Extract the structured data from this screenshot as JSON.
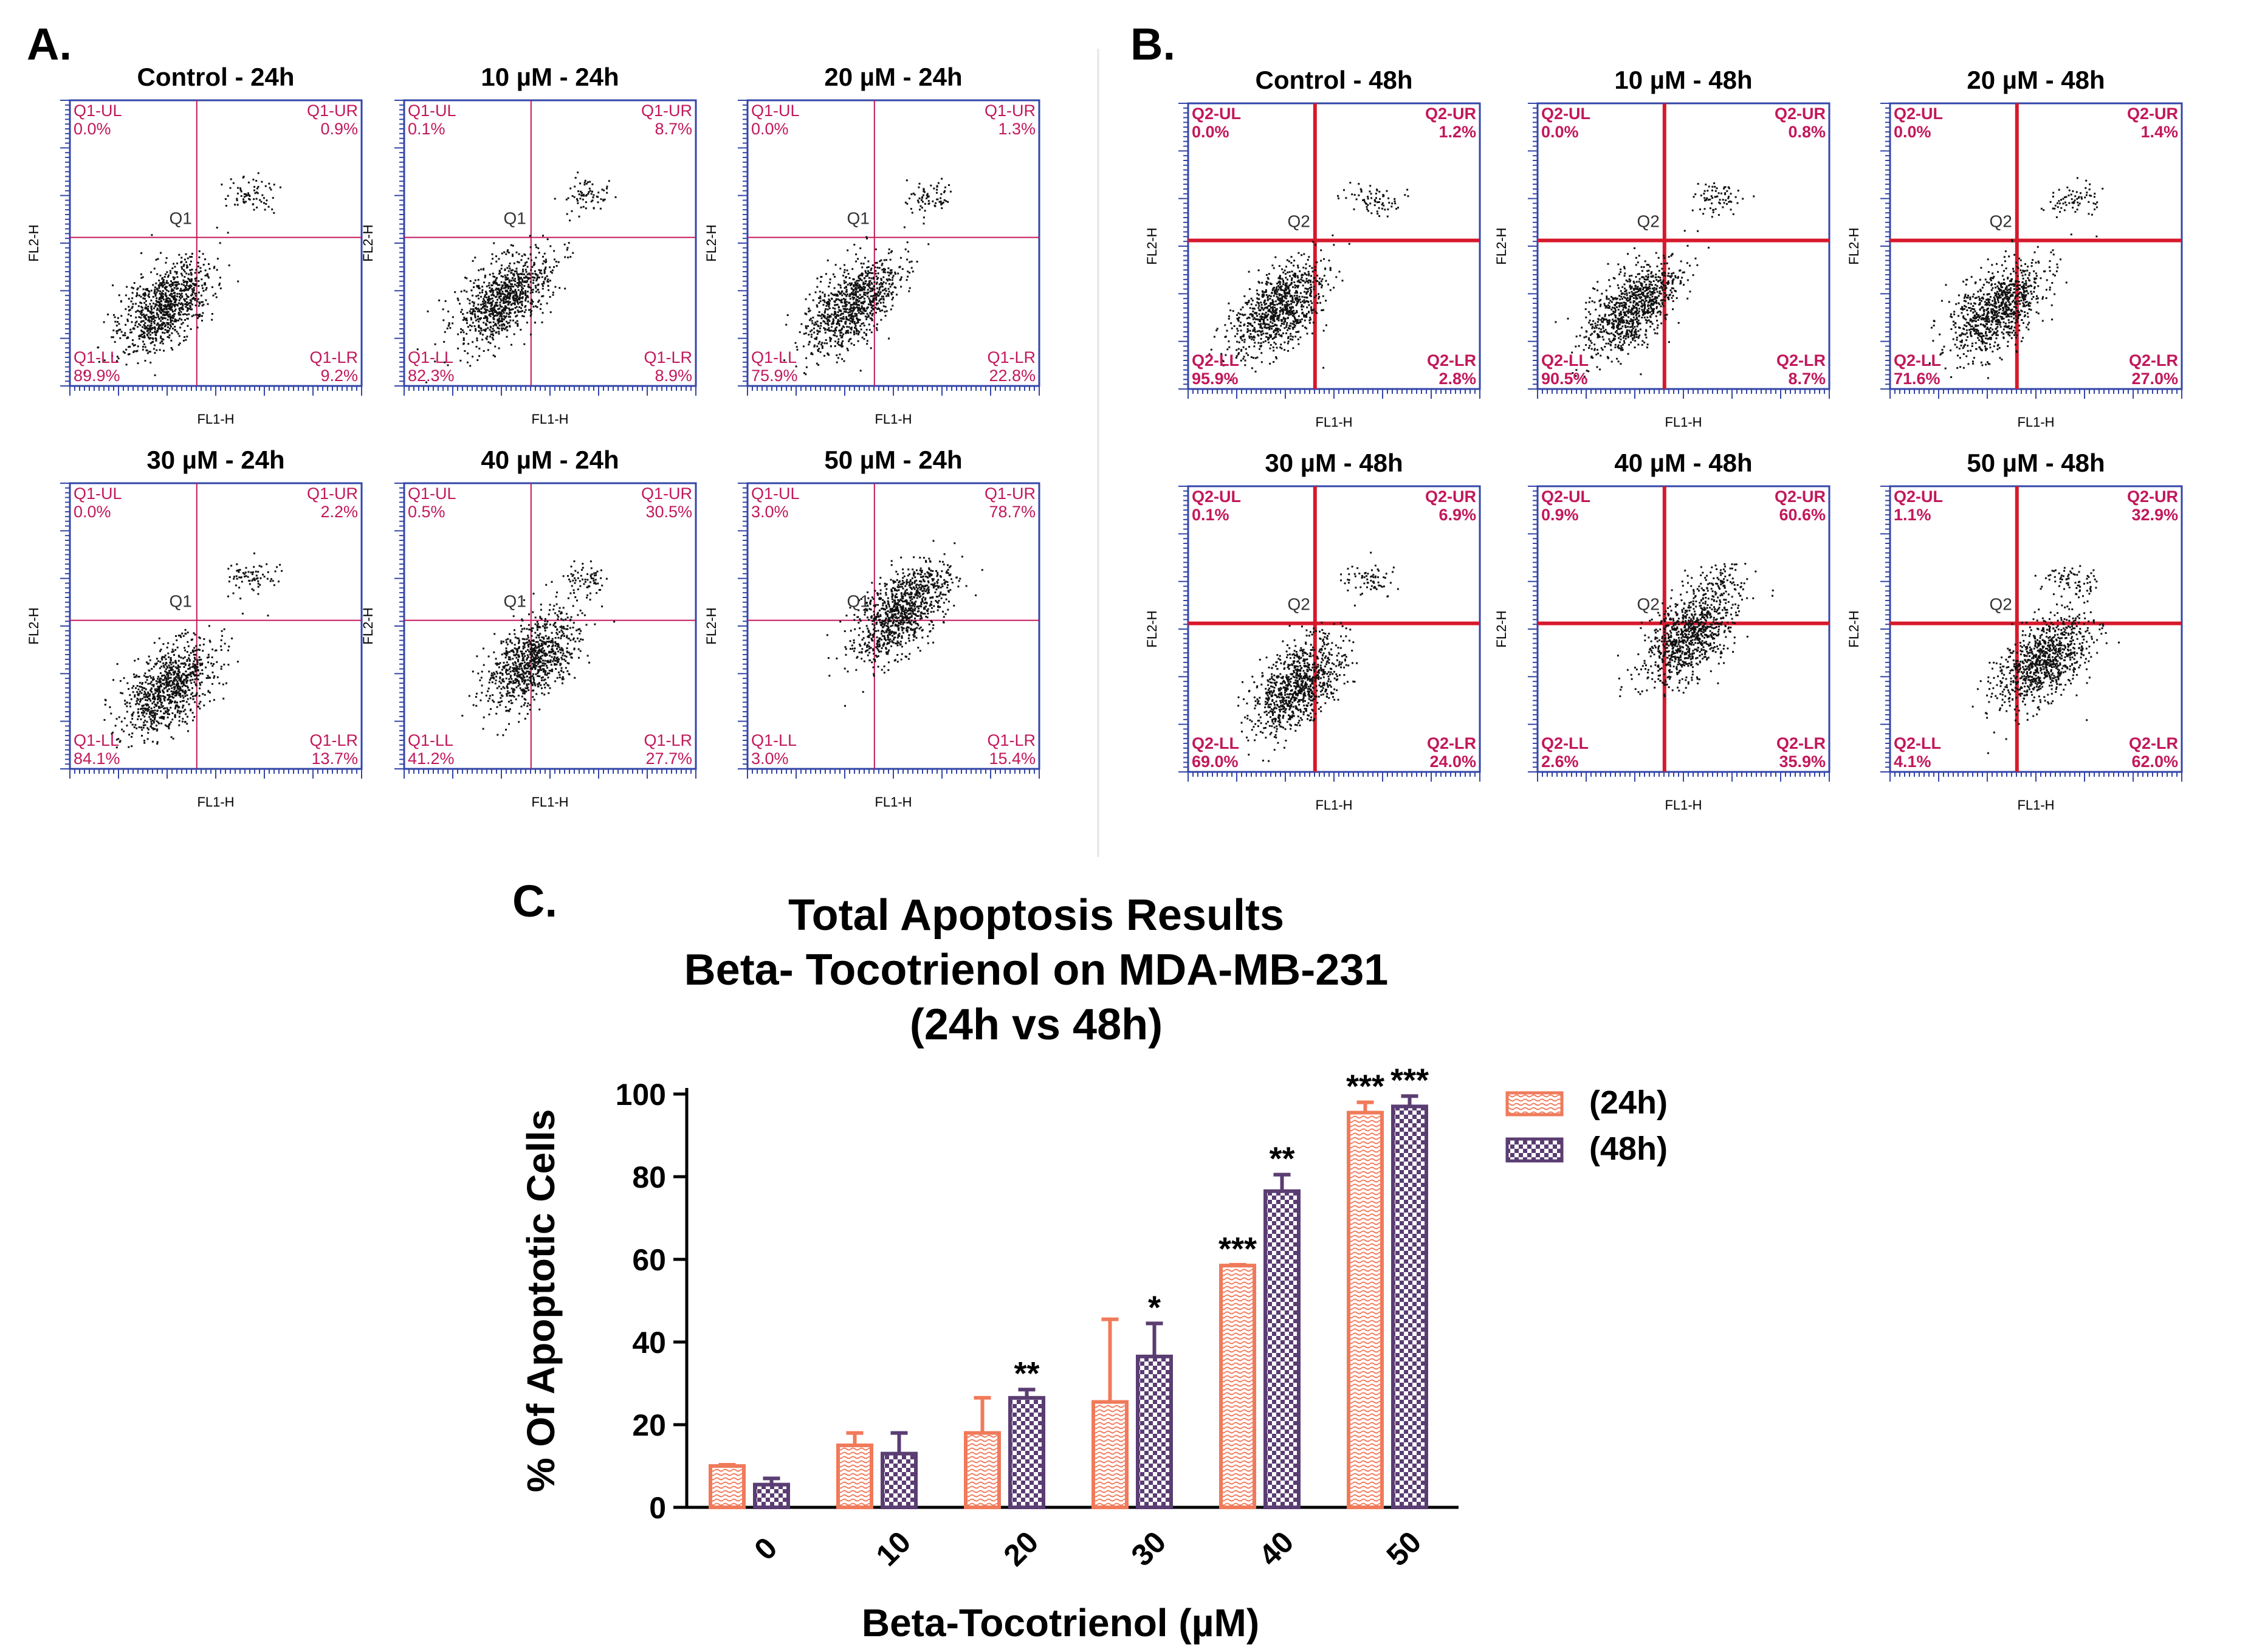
{
  "panel_labels": {
    "a": "A.",
    "b": "B.",
    "c": "C."
  },
  "panel_a": {
    "plots": [
      {
        "title": "Control - 24h",
        "prefix": "Q1",
        "UL": "0.0%",
        "UR": "0.9%",
        "LL": "89.9%",
        "LR": "9.2%"
      },
      {
        "title": "10 µM - 24h",
        "prefix": "Q1",
        "UL": "0.1%",
        "UR": "8.7%",
        "LL": "82.3%",
        "LR": "8.9%"
      },
      {
        "title": "20 µM - 24h",
        "prefix": "Q1",
        "UL": "0.0%",
        "UR": "1.3%",
        "LL": "75.9%",
        "LR": "22.8%"
      },
      {
        "title": "30 µM - 24h",
        "prefix": "Q1",
        "UL": "0.0%",
        "UR": "2.2%",
        "LL": "84.1%",
        "LR": "13.7%"
      },
      {
        "title": "40 µM - 24h",
        "prefix": "Q1",
        "UL": "0.5%",
        "UR": "30.5%",
        "LL": "41.2%",
        "LR": "27.7%"
      },
      {
        "title": "50 µM - 24h",
        "prefix": "Q1",
        "UL": "3.0%",
        "UR": "78.7%",
        "LL": "3.0%",
        "LR": "15.4%"
      }
    ]
  },
  "panel_b": {
    "plots": [
      {
        "title": "Control - 48h",
        "prefix": "Q2",
        "UL": "0.0%",
        "UR": "1.2%",
        "LL": "95.9%",
        "LR": "2.8%"
      },
      {
        "title": "10 µM - 48h",
        "prefix": "Q2",
        "UL": "0.0%",
        "UR": "0.8%",
        "LL": "90.5%",
        "LR": "8.7%"
      },
      {
        "title": "20 µM - 48h",
        "prefix": "Q2",
        "UL": "0.0%",
        "UR": "1.4%",
        "LL": "71.6%",
        "LR": "27.0%"
      },
      {
        "title": "30 µM - 48h",
        "prefix": "Q2",
        "UL": "0.1%",
        "UR": "6.9%",
        "LL": "69.0%",
        "LR": "24.0%"
      },
      {
        "title": "40 µM - 48h",
        "prefix": "Q2",
        "UL": "0.9%",
        "UR": "60.6%",
        "LL": "2.6%",
        "LR": "35.9%"
      },
      {
        "title": "50 µM - 48h",
        "prefix": "Q2",
        "UL": "1.1%",
        "UR": "32.9%",
        "LL": "4.1%",
        "LR": "62.0%"
      }
    ]
  },
  "flow_axes": {
    "xlabel": "FL1-H",
    "ylabel": "FL2-H"
  },
  "chart_data": {
    "type": "bar",
    "title": "Total Apoptosis Results",
    "subtitle": "Beta- Tocotrienol on MDA-MB-231",
    "subtitle2": "(24h vs 48h)",
    "xlabel": "Beta-Tocotrienol (µM)",
    "ylabel": "% Of Apoptotic Cells",
    "categories": [
      "0",
      "10",
      "20",
      "30",
      "40",
      "50"
    ],
    "ylim": [
      0,
      100
    ],
    "yticks": [
      0,
      20,
      40,
      60,
      80,
      100
    ],
    "series": [
      {
        "name": "(24h)",
        "color": "#f07a5a",
        "values": [
          10,
          15,
          18,
          25.5,
          58.5,
          95.5
        ],
        "errors": [
          0.3,
          3,
          8.5,
          20,
          0.2,
          2.5
        ],
        "significance": [
          "",
          "",
          "",
          "",
          "***",
          "***"
        ]
      },
      {
        "name": "(48h)",
        "color": "#5a3d72",
        "values": [
          5.5,
          13,
          26.5,
          36.5,
          76.5,
          97
        ],
        "errors": [
          1.5,
          5,
          2,
          8,
          4,
          2.5
        ],
        "significance": [
          "",
          "",
          "**",
          "*",
          "**",
          "***"
        ]
      }
    ],
    "legend_position": "right"
  }
}
